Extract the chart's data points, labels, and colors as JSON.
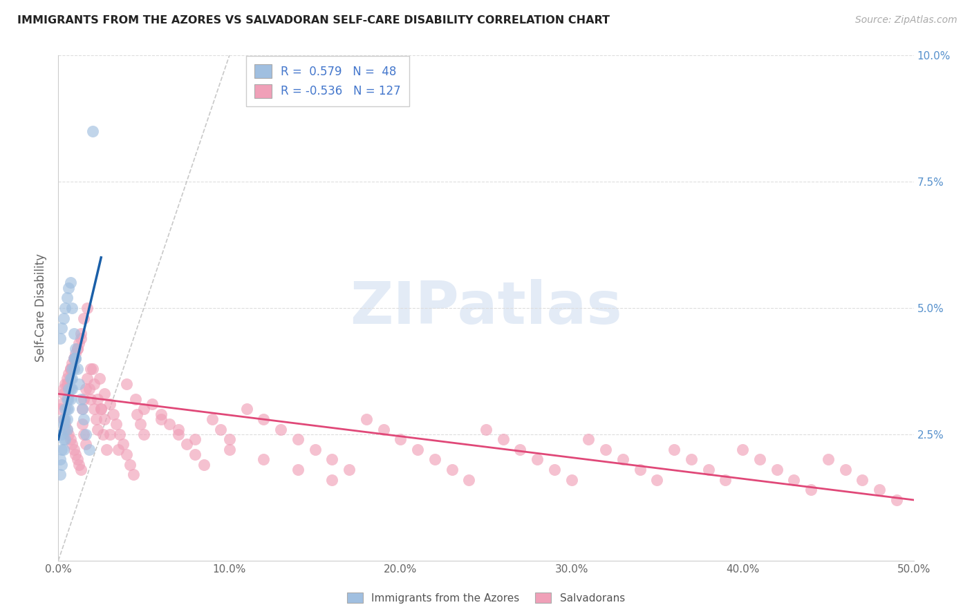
{
  "title": "IMMIGRANTS FROM THE AZORES VS SALVADORAN SELF-CARE DISABILITY CORRELATION CHART",
  "source": "Source: ZipAtlas.com",
  "ylabel": "Self-Care Disability",
  "xlim": [
    0.0,
    0.5
  ],
  "ylim": [
    0.0,
    0.1
  ],
  "xticks": [
    0.0,
    0.1,
    0.2,
    0.3,
    0.4,
    0.5
  ],
  "yticks": [
    0.0,
    0.025,
    0.05,
    0.075,
    0.1
  ],
  "xticklabels": [
    "0.0%",
    "10.0%",
    "20.0%",
    "30.0%",
    "40.0%",
    "50.0%"
  ],
  "yticklabels_right": [
    "",
    "2.5%",
    "5.0%",
    "7.5%",
    "10.0%"
  ],
  "blue_R": 0.579,
  "blue_N": 48,
  "pink_R": -0.536,
  "pink_N": 127,
  "blue_color": "#a0bfe0",
  "pink_color": "#f0a0b8",
  "blue_line_color": "#1a5fa8",
  "pink_line_color": "#e04878",
  "ref_line_color": "#bbbbbb",
  "grid_color": "#dddddd",
  "watermark_text": "ZIPatlas",
  "watermark_color": "#c8d8ee",
  "legend_label_blue": "Immigrants from the Azores",
  "legend_label_pink": "Salvadorans",
  "blue_scatter_x": [
    0.001,
    0.001,
    0.002,
    0.002,
    0.002,
    0.003,
    0.003,
    0.003,
    0.003,
    0.004,
    0.004,
    0.004,
    0.004,
    0.005,
    0.005,
    0.005,
    0.005,
    0.006,
    0.006,
    0.006,
    0.007,
    0.007,
    0.007,
    0.008,
    0.008,
    0.008,
    0.009,
    0.009,
    0.01,
    0.01,
    0.001,
    0.002,
    0.003,
    0.004,
    0.005,
    0.006,
    0.007,
    0.008,
    0.009,
    0.01,
    0.011,
    0.012,
    0.013,
    0.014,
    0.015,
    0.016,
    0.018,
    0.02
  ],
  "blue_scatter_y": [
    0.02,
    0.017,
    0.022,
    0.025,
    0.019,
    0.027,
    0.024,
    0.028,
    0.022,
    0.03,
    0.028,
    0.026,
    0.024,
    0.032,
    0.03,
    0.028,
    0.026,
    0.034,
    0.032,
    0.03,
    0.036,
    0.034,
    0.032,
    0.038,
    0.036,
    0.034,
    0.04,
    0.038,
    0.042,
    0.04,
    0.044,
    0.046,
    0.048,
    0.05,
    0.052,
    0.054,
    0.055,
    0.05,
    0.045,
    0.04,
    0.038,
    0.035,
    0.032,
    0.03,
    0.028,
    0.025,
    0.022,
    0.085
  ],
  "pink_scatter_x": [
    0.001,
    0.002,
    0.003,
    0.003,
    0.004,
    0.004,
    0.005,
    0.005,
    0.006,
    0.006,
    0.007,
    0.007,
    0.008,
    0.008,
    0.009,
    0.009,
    0.01,
    0.01,
    0.011,
    0.011,
    0.012,
    0.012,
    0.013,
    0.013,
    0.014,
    0.014,
    0.015,
    0.015,
    0.016,
    0.016,
    0.017,
    0.018,
    0.019,
    0.02,
    0.021,
    0.022,
    0.023,
    0.024,
    0.025,
    0.026,
    0.027,
    0.028,
    0.03,
    0.032,
    0.034,
    0.036,
    0.038,
    0.04,
    0.042,
    0.044,
    0.046,
    0.048,
    0.05,
    0.055,
    0.06,
    0.065,
    0.07,
    0.075,
    0.08,
    0.085,
    0.09,
    0.095,
    0.1,
    0.11,
    0.12,
    0.13,
    0.14,
    0.15,
    0.16,
    0.17,
    0.18,
    0.19,
    0.2,
    0.21,
    0.22,
    0.23,
    0.24,
    0.25,
    0.26,
    0.27,
    0.28,
    0.29,
    0.3,
    0.31,
    0.32,
    0.33,
    0.34,
    0.35,
    0.36,
    0.37,
    0.38,
    0.39,
    0.4,
    0.41,
    0.42,
    0.43,
    0.44,
    0.45,
    0.46,
    0.47,
    0.48,
    0.49,
    0.003,
    0.005,
    0.007,
    0.009,
    0.011,
    0.013,
    0.015,
    0.017,
    0.019,
    0.021,
    0.023,
    0.025,
    0.027,
    0.03,
    0.035,
    0.04,
    0.045,
    0.05,
    0.06,
    0.07,
    0.08,
    0.1,
    0.12,
    0.14,
    0.16
  ],
  "pink_scatter_y": [
    0.03,
    0.031,
    0.028,
    0.034,
    0.027,
    0.035,
    0.026,
    0.036,
    0.025,
    0.037,
    0.024,
    0.038,
    0.023,
    0.039,
    0.022,
    0.04,
    0.021,
    0.041,
    0.02,
    0.042,
    0.019,
    0.043,
    0.018,
    0.044,
    0.03,
    0.027,
    0.032,
    0.025,
    0.034,
    0.023,
    0.036,
    0.034,
    0.032,
    0.038,
    0.03,
    0.028,
    0.026,
    0.036,
    0.03,
    0.025,
    0.033,
    0.022,
    0.031,
    0.029,
    0.027,
    0.025,
    0.023,
    0.021,
    0.019,
    0.017,
    0.029,
    0.027,
    0.025,
    0.031,
    0.029,
    0.027,
    0.025,
    0.023,
    0.021,
    0.019,
    0.028,
    0.026,
    0.024,
    0.03,
    0.028,
    0.026,
    0.024,
    0.022,
    0.02,
    0.018,
    0.028,
    0.026,
    0.024,
    0.022,
    0.02,
    0.018,
    0.016,
    0.026,
    0.024,
    0.022,
    0.02,
    0.018,
    0.016,
    0.024,
    0.022,
    0.02,
    0.018,
    0.016,
    0.022,
    0.02,
    0.018,
    0.016,
    0.022,
    0.02,
    0.018,
    0.016,
    0.014,
    0.02,
    0.018,
    0.016,
    0.014,
    0.012,
    0.033,
    0.035,
    0.038,
    0.04,
    0.042,
    0.045,
    0.048,
    0.05,
    0.038,
    0.035,
    0.032,
    0.03,
    0.028,
    0.025,
    0.022,
    0.035,
    0.032,
    0.03,
    0.028,
    0.026,
    0.024,
    0.022,
    0.02,
    0.018,
    0.016
  ],
  "blue_line_x": [
    0.0,
    0.025
  ],
  "blue_line_y": [
    0.024,
    0.06
  ],
  "pink_line_x": [
    0.0,
    0.5
  ],
  "pink_line_y": [
    0.033,
    0.012
  ],
  "ref_line_x": [
    0.0,
    0.1
  ],
  "ref_line_y": [
    0.0,
    0.1
  ]
}
